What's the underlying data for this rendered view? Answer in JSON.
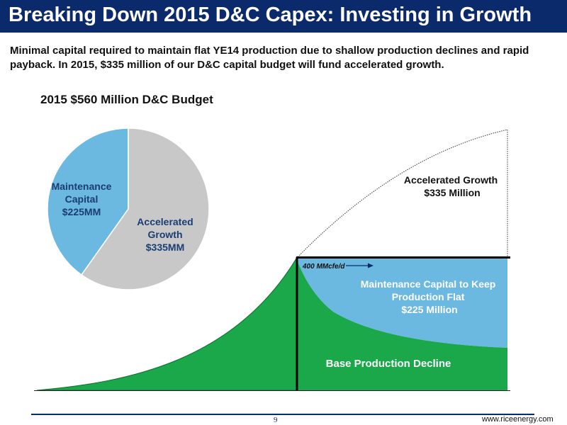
{
  "header": {
    "title": "Breaking Down 2015 D&C Capex:  Investing in Growth",
    "subtitle": "Minimal capital required to maintain flat YE14 production due to shallow production declines and rapid payback. In 2015, $335 million of our D&C capital budget will fund accelerated growth."
  },
  "chart_data": [
    {
      "type": "pie",
      "title": "2015 $560 Million D&C Budget",
      "slices": [
        {
          "label_lines": [
            "Maintenance",
            "Capital",
            "$225MM"
          ],
          "value": 225,
          "color": "#6bb8e0"
        },
        {
          "label_lines": [
            "Accelerated",
            "Growth",
            "$335MM"
          ],
          "value": 335,
          "color": "#c8c8c8"
        }
      ]
    },
    {
      "type": "area",
      "title": "",
      "regions": {
        "accelerated_growth": {
          "label_lines": [
            "Accelerated Growth",
            "$335 Million"
          ],
          "color": "#ffffff"
        },
        "maintenance": {
          "label_lines": [
            "Maintenance Capital to Keep",
            "Production Flat",
            "$225 Million"
          ],
          "color": "#6bb8e0"
        },
        "base_decline": {
          "label": "Base Production Decline",
          "color": "#1aa84b"
        }
      },
      "annotation": "400 MMcfe/d"
    }
  ],
  "footer": {
    "page": "9",
    "website": "www.riceenergy.com"
  }
}
